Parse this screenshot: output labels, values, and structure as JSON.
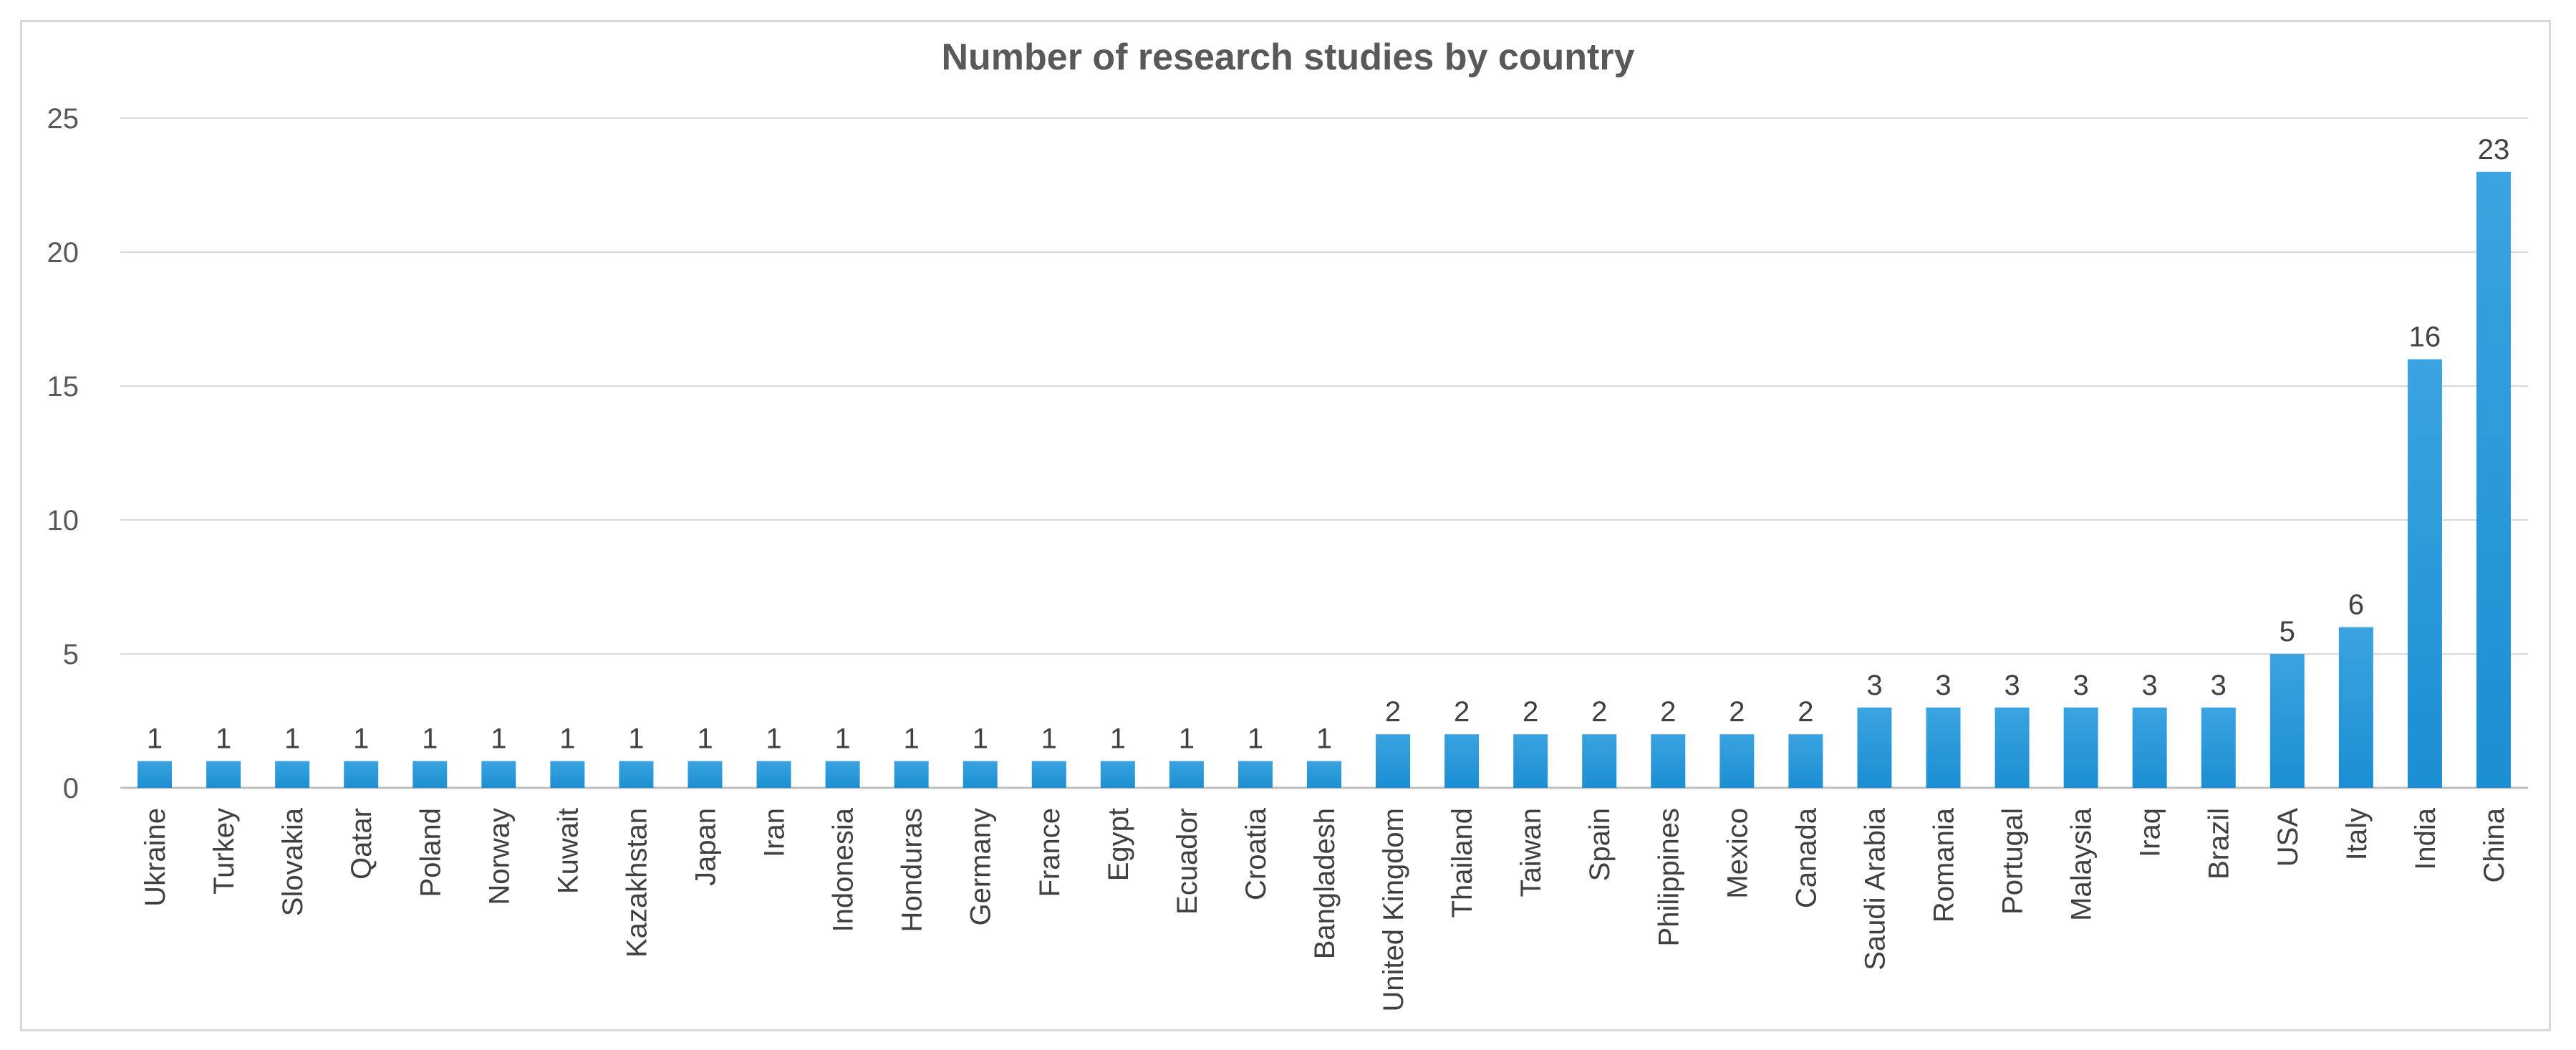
{
  "chart_data": {
    "type": "bar",
    "title": "Number of research studies by country",
    "xlabel": "",
    "ylabel": "",
    "ylim": [
      0,
      25
    ],
    "yticks": [
      0,
      5,
      10,
      15,
      20,
      25
    ],
    "grid": true,
    "legend": "none",
    "data_labels": true,
    "categories": [
      "Ukraine",
      "Turkey",
      "Slovakia",
      "Qatar",
      "Poland",
      "Norway",
      "Kuwait",
      "Kazakhstan",
      "Japan",
      "Iran",
      "Indonesia",
      "Honduras",
      "Germany",
      "France",
      "Egypt",
      "Ecuador",
      "Croatia",
      "Bangladesh",
      "United Kingdom",
      "Thailand",
      "Taiwan",
      "Spain",
      "Philippines",
      "Mexico",
      "Canada",
      "Saudi Arabia",
      "Romania",
      "Portugal",
      "Malaysia",
      "Iraq",
      "Brazil",
      "USA",
      "Italy",
      "India",
      "China"
    ],
    "values": [
      1,
      1,
      1,
      1,
      1,
      1,
      1,
      1,
      1,
      1,
      1,
      1,
      1,
      1,
      1,
      1,
      1,
      1,
      2,
      2,
      2,
      2,
      2,
      2,
      2,
      3,
      3,
      3,
      3,
      3,
      3,
      5,
      6,
      16,
      23
    ],
    "colors": {
      "bar_top": "#3ba3e0",
      "bar_bottom": "#1b8fd2",
      "grid": "#d9d9d9",
      "axis": "#bfbfbf"
    }
  }
}
